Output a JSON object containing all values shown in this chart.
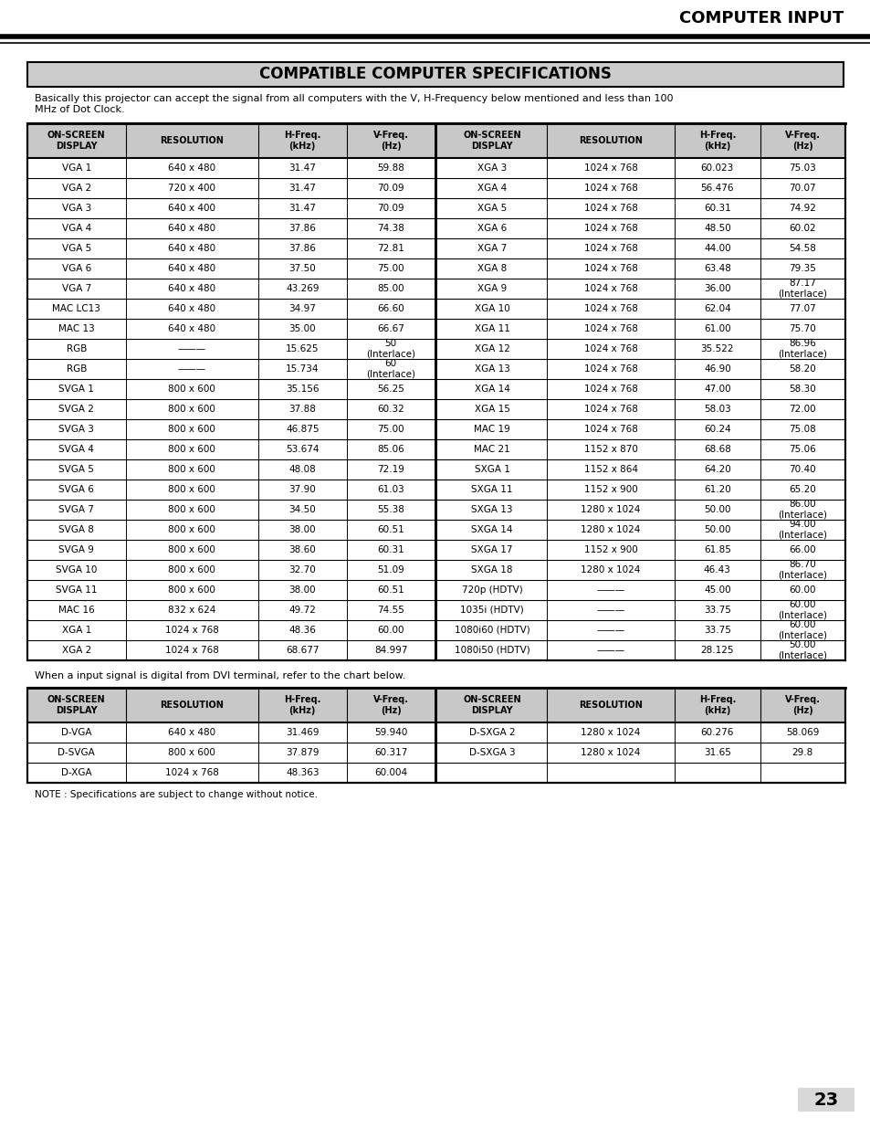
{
  "title": "COMPATIBLE COMPUTER SPECIFICATIONS",
  "header_text": "COMPUTER INPUT",
  "intro_text": "Basically this projector can accept the signal from all computers with the V, H-Frequency below mentioned and less than 100\nMHz of Dot Clock.",
  "col_headers": [
    "ON-SCREEN\nDISPLAY",
    "RESOLUTION",
    "H-Freq.\n(kHz)",
    "V-Freq.\n(Hz)",
    "ON-SCREEN\nDISPLAY",
    "RESOLUTION",
    "H-Freq.\n(kHz)",
    "V-Freq.\n(Hz)"
  ],
  "table1_rows": [
    [
      "VGA 1",
      "640 x 480",
      "31.47",
      "59.88",
      "XGA 3",
      "1024 x 768",
      "60.023",
      "75.03"
    ],
    [
      "VGA 2",
      "720 x 400",
      "31.47",
      "70.09",
      "XGA 4",
      "1024 x 768",
      "56.476",
      "70.07"
    ],
    [
      "VGA 3",
      "640 x 400",
      "31.47",
      "70.09",
      "XGA 5",
      "1024 x 768",
      "60.31",
      "74.92"
    ],
    [
      "VGA 4",
      "640 x 480",
      "37.86",
      "74.38",
      "XGA 6",
      "1024 x 768",
      "48.50",
      "60.02"
    ],
    [
      "VGA 5",
      "640 x 480",
      "37.86",
      "72.81",
      "XGA 7",
      "1024 x 768",
      "44.00",
      "54.58"
    ],
    [
      "VGA 6",
      "640 x 480",
      "37.50",
      "75.00",
      "XGA 8",
      "1024 x 768",
      "63.48",
      "79.35"
    ],
    [
      "VGA 7",
      "640 x 480",
      "43.269",
      "85.00",
      "XGA 9",
      "1024 x 768",
      "36.00",
      "87.17\n(Interlace)"
    ],
    [
      "MAC LC13",
      "640 x 480",
      "34.97",
      "66.60",
      "XGA 10",
      "1024 x 768",
      "62.04",
      "77.07"
    ],
    [
      "MAC 13",
      "640 x 480",
      "35.00",
      "66.67",
      "XGA 11",
      "1024 x 768",
      "61.00",
      "75.70"
    ],
    [
      "RGB",
      "———",
      "15.625",
      "50\n(Interlace)",
      "XGA 12",
      "1024 x 768",
      "35.522",
      "86.96\n(Interlace)"
    ],
    [
      "RGB",
      "———",
      "15.734",
      "60\n(Interlace)",
      "XGA 13",
      "1024 x 768",
      "46.90",
      "58.20"
    ],
    [
      "SVGA 1",
      "800 x 600",
      "35.156",
      "56.25",
      "XGA 14",
      "1024 x 768",
      "47.00",
      "58.30"
    ],
    [
      "SVGA 2",
      "800 x 600",
      "37.88",
      "60.32",
      "XGA 15",
      "1024 x 768",
      "58.03",
      "72.00"
    ],
    [
      "SVGA 3",
      "800 x 600",
      "46.875",
      "75.00",
      "MAC 19",
      "1024 x 768",
      "60.24",
      "75.08"
    ],
    [
      "SVGA 4",
      "800 x 600",
      "53.674",
      "85.06",
      "MAC 21",
      "1152 x 870",
      "68.68",
      "75.06"
    ],
    [
      "SVGA 5",
      "800 x 600",
      "48.08",
      "72.19",
      "SXGA 1",
      "1152 x 864",
      "64.20",
      "70.40"
    ],
    [
      "SVGA 6",
      "800 x 600",
      "37.90",
      "61.03",
      "SXGA 11",
      "1152 x 900",
      "61.20",
      "65.20"
    ],
    [
      "SVGA 7",
      "800 x 600",
      "34.50",
      "55.38",
      "SXGA 13",
      "1280 x 1024",
      "50.00",
      "86.00\n(Interlace)"
    ],
    [
      "SVGA 8",
      "800 x 600",
      "38.00",
      "60.51",
      "SXGA 14",
      "1280 x 1024",
      "50.00",
      "94.00\n(Interlace)"
    ],
    [
      "SVGA 9",
      "800 x 600",
      "38.60",
      "60.31",
      "SXGA 17",
      "1152 x 900",
      "61.85",
      "66.00"
    ],
    [
      "SVGA 10",
      "800 x 600",
      "32.70",
      "51.09",
      "SXGA 18",
      "1280 x 1024",
      "46.43",
      "86.70\n(Interlace)"
    ],
    [
      "SVGA 11",
      "800 x 600",
      "38.00",
      "60.51",
      "720p (HDTV)",
      "———",
      "45.00",
      "60.00"
    ],
    [
      "MAC 16",
      "832 x 624",
      "49.72",
      "74.55",
      "1035i (HDTV)",
      "———",
      "33.75",
      "60.00\n(Interlace)"
    ],
    [
      "XGA 1",
      "1024 x 768",
      "48.36",
      "60.00",
      "1080i60 (HDTV)",
      "———",
      "33.75",
      "60.00\n(Interlace)"
    ],
    [
      "XGA 2",
      "1024 x 768",
      "68.677",
      "84.997",
      "1080i50 (HDTV)",
      "———",
      "28.125",
      "50.00\n(Interlace)"
    ]
  ],
  "dvi_intro": "When a input signal is digital from DVI terminal, refer to the chart below.",
  "dvi_col_headers": [
    "ON-SCREEN\nDISPLAY",
    "RESOLUTION",
    "H-Freq.\n(kHz)",
    "V-Freq.\n(Hz)",
    "ON-SCREEN\nDISPLAY",
    "RESOLUTION",
    "H-Freq.\n(kHz)",
    "V-Freq.\n(Hz)"
  ],
  "dvi_rows": [
    [
      "D-VGA",
      "640 x 480",
      "31.469",
      "59.940",
      "D-SXGA 2",
      "1280 x 1024",
      "60.276",
      "58.069"
    ],
    [
      "D-SVGA",
      "800 x 600",
      "37.879",
      "60.317",
      "D-SXGA 3",
      "1280 x 1024",
      "31.65",
      "29.8"
    ],
    [
      "D-XGA",
      "1024 x 768",
      "48.363",
      "60.004",
      "",
      "",
      "",
      ""
    ]
  ],
  "note_text": "NOTE : Specifications are subject to change without notice.",
  "page_number": "23"
}
